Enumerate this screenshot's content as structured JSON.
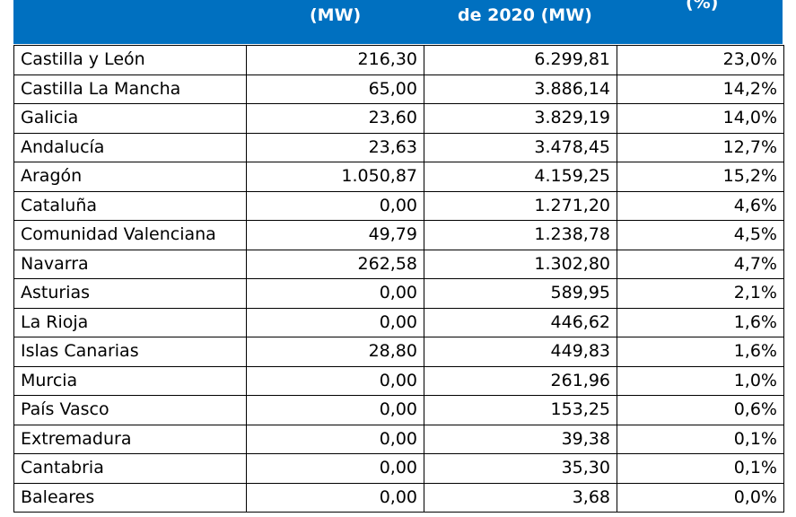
{
  "header": {
    "col2": "(MW)",
    "col3": "de 2020 (MW)",
    "col4": "(%)"
  },
  "rows": [
    {
      "region": "Castilla y León",
      "installed": "216,30",
      "total": "6.299,81",
      "pct": "23,0%"
    },
    {
      "region": "Castilla La Mancha",
      "installed": "65,00",
      "total": "3.886,14",
      "pct": "14,2%"
    },
    {
      "region": "Galicia",
      "installed": "23,60",
      "total": "3.829,19",
      "pct": "14,0%"
    },
    {
      "region": "Andalucía",
      "installed": "23,63",
      "total": "3.478,45",
      "pct": "12,7%"
    },
    {
      "region": "Aragón",
      "installed": "1.050,87",
      "total": "4.159,25",
      "pct": "15,2%"
    },
    {
      "region": "Cataluña",
      "installed": "0,00",
      "total": "1.271,20",
      "pct": "4,6%"
    },
    {
      "region": "Comunidad Valenciana",
      "installed": "49,79",
      "total": "1.238,78",
      "pct": "4,5%"
    },
    {
      "region": "Navarra",
      "installed": "262,58",
      "total": "1.302,80",
      "pct": "4,7%"
    },
    {
      "region": "Asturias",
      "installed": "0,00",
      "total": "589,95",
      "pct": "2,1%"
    },
    {
      "region": "La Rioja",
      "installed": "0,00",
      "total": "446,62",
      "pct": "1,6%"
    },
    {
      "region": "Islas Canarias",
      "installed": "28,80",
      "total": "449,83",
      "pct": "1,6%"
    },
    {
      "region": "Murcia",
      "installed": "0,00",
      "total": "261,96",
      "pct": "1,0%"
    },
    {
      "region": "País Vasco",
      "installed": "0,00",
      "total": "153,25",
      "pct": "0,6%"
    },
    {
      "region": "Extremadura",
      "installed": "0,00",
      "total": "39,38",
      "pct": "0,1%"
    },
    {
      "region": "Cantabria",
      "installed": "0,00",
      "total": "35,30",
      "pct": "0,1%"
    },
    {
      "region": "Baleares",
      "installed": "0,00",
      "total": "3,68",
      "pct": "0,0%"
    }
  ],
  "colors": {
    "header_bg": "#0070c0",
    "header_text": "#ffffff",
    "border": "#000000"
  }
}
